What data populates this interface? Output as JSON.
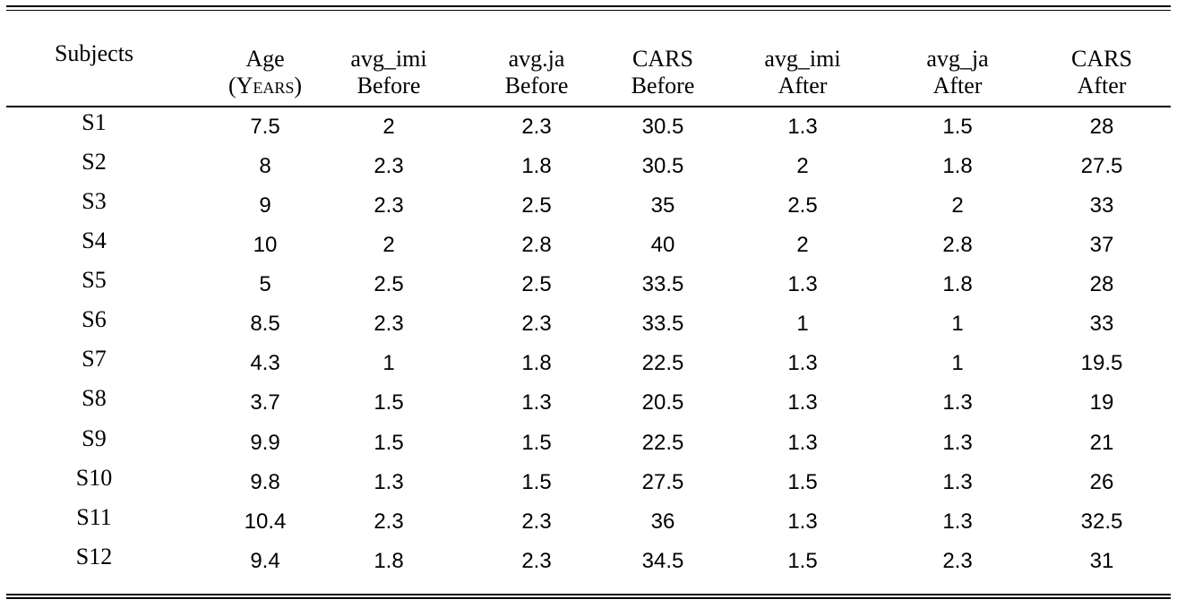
{
  "table": {
    "headers": [
      {
        "line1": "Subjects",
        "line2": ""
      },
      {
        "line1": "Age",
        "line2": "(Years)"
      },
      {
        "line1": "avg_imi",
        "line2": "Before"
      },
      {
        "line1": "avg.ja",
        "line2": "Before"
      },
      {
        "line1": "CARS",
        "line2": "Before"
      },
      {
        "line1": "avg_imi",
        "line2": "After"
      },
      {
        "line1": "avg_ja",
        "line2": "After"
      },
      {
        "line1": "CARS",
        "line2": "After"
      }
    ],
    "rows": [
      [
        "S1",
        "7.5",
        "2",
        "2.3",
        "30.5",
        "1.3",
        "1.5",
        "28"
      ],
      [
        "S2",
        "8",
        "2.3",
        "1.8",
        "30.5",
        "2",
        "1.8",
        "27.5"
      ],
      [
        "S3",
        "9",
        "2.3",
        "2.5",
        "35",
        "2.5",
        "2",
        "33"
      ],
      [
        "S4",
        "10",
        "2",
        "2.8",
        "40",
        "2",
        "2.8",
        "37"
      ],
      [
        "S5",
        "5",
        "2.5",
        "2.5",
        "33.5",
        "1.3",
        "1.8",
        "28"
      ],
      [
        "S6",
        "8.5",
        "2.3",
        "2.3",
        "33.5",
        "1",
        "1",
        "33"
      ],
      [
        "S7",
        "4.3",
        "1",
        "1.8",
        "22.5",
        "1.3",
        "1",
        "19.5"
      ],
      [
        "S8",
        "3.7",
        "1.5",
        "1.3",
        "20.5",
        "1.3",
        "1.3",
        "19"
      ],
      [
        "S9",
        "9.9",
        "1.5",
        "1.5",
        "22.5",
        "1.3",
        "1.3",
        "21"
      ],
      [
        "S10",
        "9.8",
        "1.3",
        "1.5",
        "27.5",
        "1.5",
        "1.3",
        "26"
      ],
      [
        "S11",
        "10.4",
        "2.3",
        "2.3",
        "36",
        "1.3",
        "1.3",
        "32.5"
      ],
      [
        "S12",
        "9.4",
        "1.8",
        "2.3",
        "34.5",
        "1.5",
        "2.3",
        "31"
      ]
    ]
  }
}
